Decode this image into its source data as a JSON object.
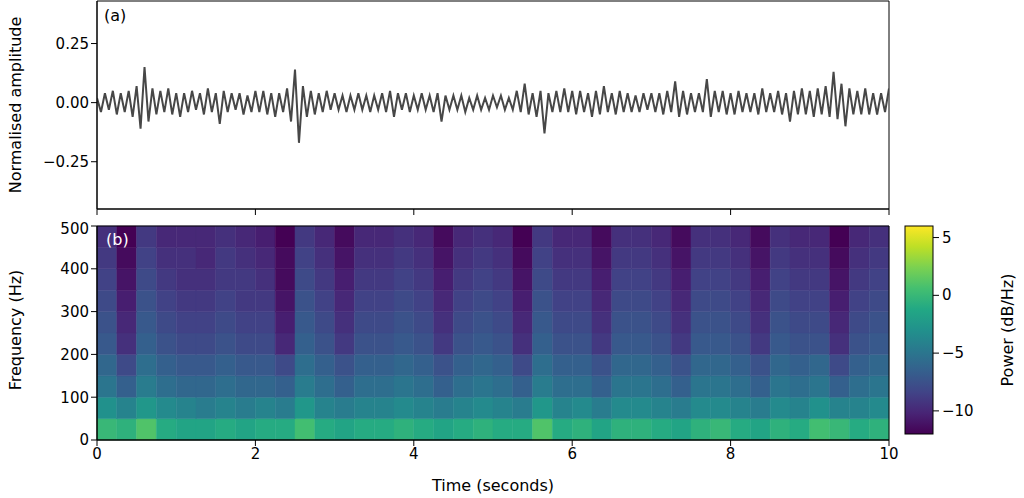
{
  "chart_data": [
    {
      "type": "line",
      "title": "(a)",
      "y_label": "Normalised amplitude",
      "color": "#474747",
      "tick_labels": "y",
      "xlim": [
        0,
        10
      ],
      "xticks": [
        0,
        2,
        4,
        6,
        8,
        10
      ],
      "ylim": [
        -0.45,
        0.43
      ],
      "yticks": [
        {
          "value": -0.25,
          "label": "−0.25"
        },
        {
          "value": 0,
          "label": "0.00"
        },
        0.25
      ],
      "x": [
        0,
        0.05,
        0.1,
        0.15,
        0.2,
        0.25,
        0.3,
        0.35,
        0.4,
        0.45,
        0.5,
        0.55,
        0.6,
        0.65,
        0.7,
        0.75,
        0.8,
        0.85,
        0.9,
        0.95,
        1,
        1.05,
        1.1,
        1.15,
        1.2,
        1.25,
        1.3,
        1.35,
        1.4,
        1.45,
        1.5,
        1.55,
        1.6,
        1.65,
        1.7,
        1.75,
        1.8,
        1.85,
        1.9,
        1.95,
        2,
        2.05,
        2.1,
        2.15,
        2.2,
        2.25,
        2.3,
        2.35,
        2.4,
        2.45,
        2.5,
        2.55,
        2.6,
        2.65,
        2.7,
        2.75,
        2.8,
        2.85,
        2.9,
        2.95,
        3,
        3.05,
        3.1,
        3.15,
        3.2,
        3.25,
        3.3,
        3.35,
        3.4,
        3.45,
        3.5,
        3.55,
        3.6,
        3.65,
        3.7,
        3.75,
        3.8,
        3.85,
        3.9,
        3.95,
        4,
        4.05,
        4.1,
        4.15,
        4.2,
        4.25,
        4.3,
        4.35,
        4.4,
        4.45,
        4.5,
        4.55,
        4.6,
        4.65,
        4.7,
        4.75,
        4.8,
        4.85,
        4.9,
        4.95,
        5,
        5.05,
        5.1,
        5.15,
        5.2,
        5.25,
        5.3,
        5.35,
        5.4,
        5.45,
        5.5,
        5.55,
        5.6,
        5.65,
        5.7,
        5.75,
        5.8,
        5.85,
        5.9,
        5.95,
        6,
        6.05,
        6.1,
        6.15,
        6.2,
        6.25,
        6.3,
        6.35,
        6.4,
        6.45,
        6.5,
        6.55,
        6.6,
        6.65,
        6.7,
        6.75,
        6.8,
        6.85,
        6.9,
        6.95,
        7,
        7.05,
        7.1,
        7.15,
        7.2,
        7.25,
        7.3,
        7.35,
        7.4,
        7.45,
        7.5,
        7.55,
        7.6,
        7.65,
        7.7,
        7.75,
        7.8,
        7.85,
        7.9,
        7.95,
        8,
        8.05,
        8.1,
        8.15,
        8.2,
        8.25,
        8.3,
        8.35,
        8.4,
        8.45,
        8.5,
        8.55,
        8.6,
        8.65,
        8.7,
        8.75,
        8.8,
        8.85,
        8.9,
        8.95,
        9,
        9.05,
        9.1,
        9.15,
        9.2,
        9.25,
        9.3,
        9.35,
        9.4,
        9.45,
        9.5,
        9.55,
        9.6,
        9.65,
        9.7,
        9.75,
        9.8,
        9.85,
        9.9,
        9.95,
        10
      ],
      "values": [
        0.02,
        -0.04,
        0.04,
        -0.03,
        0.05,
        -0.05,
        0.04,
        -0.04,
        0.05,
        -0.06,
        0.07,
        -0.11,
        0.15,
        -0.08,
        0.06,
        -0.05,
        0.05,
        -0.04,
        0.06,
        -0.05,
        0.04,
        -0.06,
        0.04,
        -0.04,
        0.05,
        -0.03,
        0.04,
        -0.05,
        0.06,
        -0.04,
        0.04,
        -0.09,
        0.05,
        -0.04,
        0.04,
        -0.03,
        0.04,
        -0.05,
        0.03,
        -0.04,
        0.05,
        -0.04,
        0.05,
        -0.05,
        0.04,
        -0.06,
        0.04,
        -0.04,
        0.06,
        -0.08,
        0.14,
        -0.17,
        0.07,
        -0.06,
        0.05,
        -0.05,
        0.04,
        -0.04,
        0.05,
        -0.03,
        0.04,
        -0.03,
        0.03,
        -0.04,
        0.03,
        -0.03,
        0.04,
        -0.03,
        0.03,
        -0.04,
        0.03,
        -0.03,
        0.04,
        -0.04,
        0.05,
        -0.06,
        0.04,
        -0.03,
        0.04,
        -0.04,
        0.03,
        -0.03,
        0.04,
        -0.03,
        0.03,
        -0.04,
        0.04,
        -0.08,
        0.03,
        -0.03,
        0.03,
        -0.03,
        0.03,
        -0.04,
        0.02,
        -0.03,
        0.03,
        -0.03,
        0.02,
        -0.03,
        0.03,
        -0.02,
        0.03,
        -0.03,
        0.02,
        -0.03,
        0.05,
        -0.04,
        0.08,
        -0.05,
        0.04,
        -0.06,
        0.05,
        -0.13,
        0.04,
        -0.04,
        0.05,
        -0.04,
        0.06,
        -0.04,
        0.05,
        -0.05,
        0.05,
        -0.04,
        0.04,
        -0.06,
        0.05,
        -0.05,
        0.07,
        -0.04,
        0.04,
        -0.05,
        0.05,
        -0.04,
        0.04,
        -0.04,
        0.03,
        -0.04,
        0.04,
        -0.03,
        0.04,
        -0.04,
        0.04,
        -0.05,
        0.05,
        -0.04,
        0.09,
        -0.06,
        0.05,
        -0.05,
        0.04,
        -0.04,
        0.04,
        -0.04,
        0.1,
        -0.06,
        0.05,
        -0.04,
        0.05,
        -0.05,
        0.04,
        -0.05,
        0.05,
        -0.04,
        0.04,
        -0.04,
        0.04,
        -0.05,
        0.06,
        -0.04,
        0.04,
        -0.04,
        0.05,
        -0.05,
        0.04,
        -0.08,
        0.05,
        -0.05,
        0.06,
        -0.05,
        0.05,
        -0.06,
        0.06,
        -0.05,
        0.07,
        -0.06,
        0.13,
        -0.07,
        0.08,
        -0.1,
        0.06,
        -0.05,
        0.05,
        -0.05,
        0.06,
        -0.05,
        0.04,
        -0.05,
        0.04,
        -0.04,
        0.06
      ]
    },
    {
      "type": "heatmap",
      "title": "(b)",
      "x_label": "Time (seconds)",
      "y_label": "Frequency (Hz)",
      "xlim": [
        0,
        10
      ],
      "xticks": [
        0,
        2,
        4,
        6,
        8,
        10
      ],
      "ylim": [
        0,
        500
      ],
      "yticks": [
        0,
        100,
        200,
        300,
        400,
        500
      ],
      "x_bins": [
        0,
        0.25,
        0.5,
        0.75,
        1,
        1.25,
        1.5,
        1.75,
        2,
        2.25,
        2.5,
        2.75,
        3,
        3.25,
        3.5,
        3.75,
        4,
        4.25,
        4.5,
        4.75,
        5,
        5.25,
        5.5,
        5.75,
        6,
        6.25,
        6.5,
        6.75,
        7,
        7.25,
        7.5,
        7.75,
        8,
        8.25,
        8.5,
        8.75,
        9,
        9.25,
        9.5,
        9.75,
        10
      ],
      "y_bins": [
        0,
        50,
        100,
        150,
        200,
        250,
        300,
        350,
        400,
        450,
        500
      ],
      "cells": [
        [
          0,
          -0.5,
          1,
          -1,
          -1.5,
          -1.5,
          -1,
          -1.5,
          -1,
          -1,
          0.5,
          -1,
          -1.5,
          -1,
          -1,
          -0.5,
          -1,
          -1.5,
          -1,
          -0.5,
          -1,
          -1,
          1,
          -1,
          -0.5,
          -1.5,
          -0.5,
          -0.5,
          -1,
          -1.5,
          -0.5,
          0,
          -1,
          -1.5,
          -0.5,
          -1,
          0.5,
          0,
          -1,
          -0.5
        ],
        [
          -3,
          -4,
          -2.5,
          -3.5,
          -4,
          -4.5,
          -4,
          -4.5,
          -4,
          -4.5,
          -2.5,
          -4,
          -4.5,
          -4,
          -4,
          -3.5,
          -4,
          -4.5,
          -4,
          -3.5,
          -4,
          -4.5,
          -2.5,
          -4,
          -3.5,
          -4.5,
          -3.5,
          -3.5,
          -4,
          -4.5,
          -3.5,
          -3.5,
          -4,
          -4.5,
          -3.5,
          -4,
          -3,
          -4,
          -4,
          -3.5
        ],
        [
          -5,
          -6.5,
          -4.5,
          -5.5,
          -6,
          -6,
          -5.5,
          -6,
          -6,
          -6.5,
          -4.5,
          -5.5,
          -6.5,
          -5.5,
          -5.5,
          -5,
          -5.5,
          -6.5,
          -5.5,
          -5,
          -5.5,
          -6.5,
          -4.5,
          -5.5,
          -5.5,
          -6.5,
          -5,
          -5,
          -5.5,
          -6.5,
          -5,
          -5,
          -5.5,
          -6.5,
          -5,
          -5.5,
          -5,
          -6.5,
          -5.5,
          -5
        ],
        [
          -6,
          -8,
          -5.5,
          -6.5,
          -7,
          -7,
          -6.5,
          -7,
          -7,
          -8,
          -5.5,
          -6.5,
          -7.5,
          -6.5,
          -6.5,
          -6,
          -6.5,
          -7.5,
          -6.5,
          -6,
          -6.5,
          -8,
          -5.5,
          -6.5,
          -6.5,
          -7.5,
          -6,
          -6,
          -6.5,
          -7.5,
          -6,
          -6,
          -6.5,
          -7.5,
          -6,
          -6.5,
          -6,
          -8,
          -6.5,
          -6
        ],
        [
          -7,
          -9.5,
          -6.5,
          -7.5,
          -8,
          -8,
          -7.5,
          -8,
          -8,
          -10,
          -6.5,
          -7.5,
          -9,
          -7.5,
          -7.5,
          -7,
          -7.5,
          -9,
          -7.5,
          -7,
          -7.5,
          -9.5,
          -6.5,
          -7.5,
          -7.5,
          -9,
          -7,
          -7,
          -7.5,
          -9,
          -7,
          -7,
          -7.5,
          -9,
          -7,
          -7.5,
          -7.5,
          -9.5,
          -7.5,
          -7
        ],
        [
          -7.5,
          -10,
          -7,
          -8,
          -8.5,
          -8.5,
          -8,
          -8.5,
          -8.5,
          -10.5,
          -7,
          -8,
          -9.5,
          -8,
          -8,
          -7.5,
          -8,
          -9.5,
          -8,
          -7.5,
          -8,
          -10,
          -7,
          -8,
          -8,
          -9.5,
          -7.5,
          -7.5,
          -8,
          -9.5,
          -7.5,
          -7.5,
          -8,
          -9.5,
          -7.5,
          -8,
          -8,
          -10,
          -8,
          -7.5
        ],
        [
          -8,
          -10.5,
          -7.5,
          -8.5,
          -9,
          -9,
          -8.5,
          -9,
          -9,
          -11,
          -7.5,
          -8.5,
          -10,
          -8.5,
          -8.5,
          -8,
          -8.5,
          -10,
          -8.5,
          -8,
          -8.5,
          -10.5,
          -7.5,
          -8.5,
          -8.5,
          -10,
          -8,
          -8,
          -8.5,
          -10,
          -8,
          -8,
          -8.5,
          -10,
          -8,
          -8.5,
          -8.5,
          -10.5,
          -8.5,
          -8
        ],
        [
          -8.5,
          -11,
          -8,
          -9,
          -9.5,
          -9.5,
          -9,
          -9,
          -9.5,
          -11.5,
          -8,
          -9,
          -10.5,
          -9,
          -9,
          -8.5,
          -9,
          -10.5,
          -9,
          -8.5,
          -9,
          -11,
          -8,
          -9,
          -9,
          -10.5,
          -8.5,
          -8.5,
          -9,
          -10.5,
          -8.5,
          -8.5,
          -9,
          -10.5,
          -8.5,
          -9,
          -9,
          -11,
          -9,
          -8.5
        ],
        [
          -9,
          -11.5,
          -8.5,
          -9.5,
          -9.5,
          -10,
          -9,
          -9.5,
          -10,
          -11.5,
          -8.5,
          -9.5,
          -11,
          -9.5,
          -9.5,
          -9,
          -9.5,
          -11,
          -9.5,
          -9,
          -9.5,
          -11.5,
          -8.5,
          -9.5,
          -9.5,
          -11,
          -9,
          -9,
          -9.5,
          -11,
          -9,
          -9,
          -9.5,
          -11,
          -9,
          -9.5,
          -9.5,
          -11.5,
          -9.5,
          -9
        ],
        [
          -9.5,
          -12,
          -9,
          -10,
          -10,
          -10,
          -9.5,
          -10,
          -10.5,
          -12,
          -9,
          -10,
          -11.5,
          -10,
          -10,
          -9.5,
          -10,
          -11.5,
          -10,
          -9.5,
          -10,
          -12,
          -9,
          -10,
          -10,
          -11.5,
          -9.5,
          -9.5,
          -10,
          -11.5,
          -9.5,
          -9.5,
          -10,
          -11.5,
          -9.5,
          -10,
          -10,
          -12,
          -10,
          -9.5
        ]
      ],
      "colorbar": {
        "label": "Power (dB/Hz)",
        "range": [
          -12,
          6
        ],
        "ticks": [
          {
            "value": -10,
            "label": "−10"
          },
          {
            "value": -5,
            "label": "−5"
          },
          0,
          5
        ]
      }
    }
  ]
}
